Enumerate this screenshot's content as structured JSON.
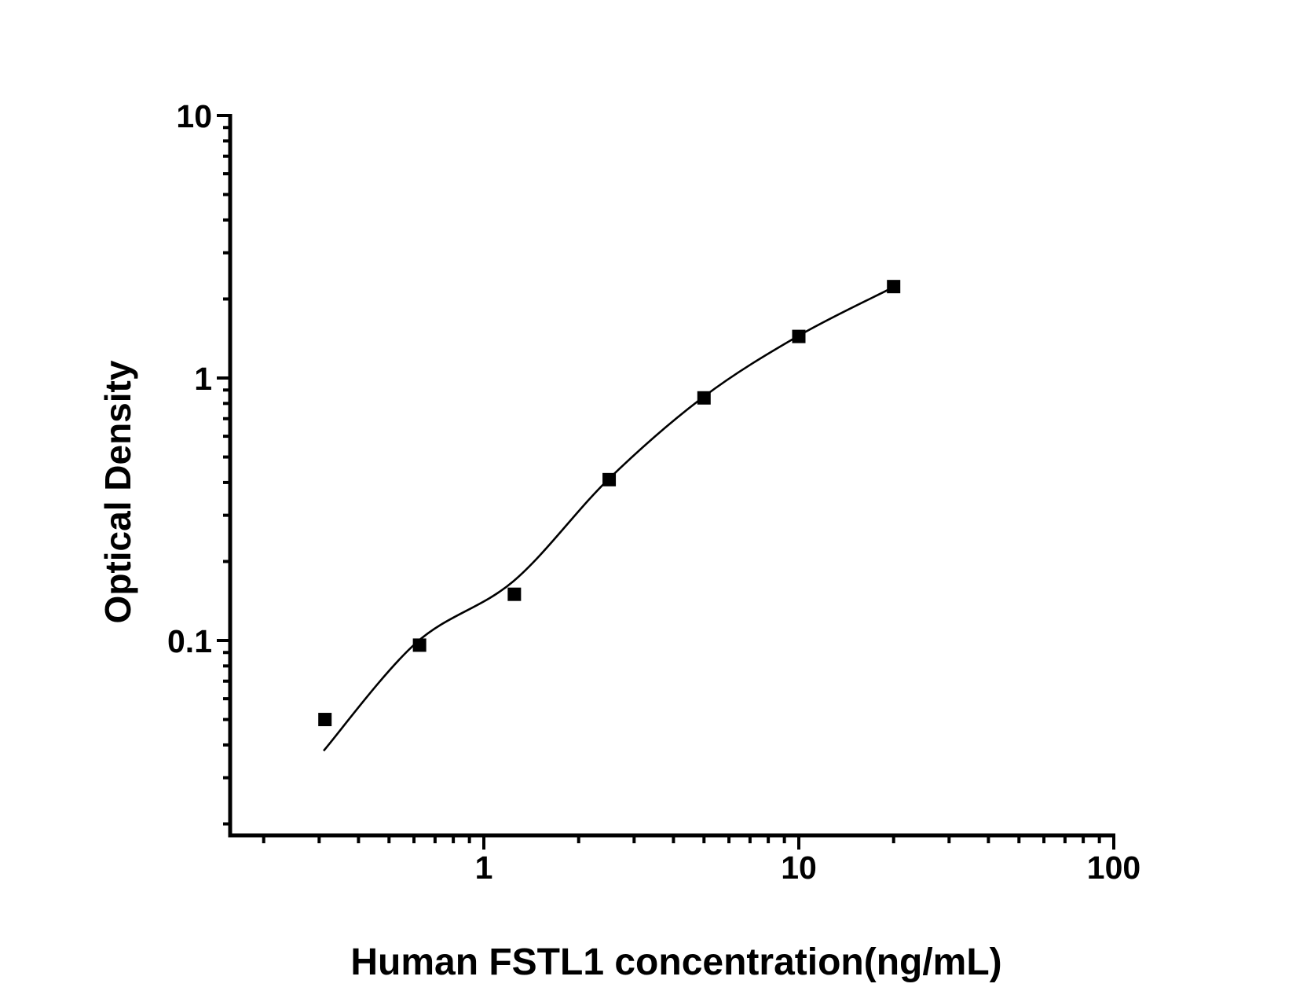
{
  "figure": {
    "background": "#ffffff",
    "ink_color": "#000000"
  },
  "chart_data": {
    "type": "scatter",
    "title": "",
    "xlabel": "Human FSTL1 concentration(ng/mL)",
    "ylabel": "Optical Density",
    "x_scale": "log",
    "y_scale": "log",
    "xlim": [
      0.155,
      100
    ],
    "ylim": [
      0.018,
      10
    ],
    "grid": false,
    "legend": false,
    "x_axis": {
      "major_tick_labels": [
        "1",
        "10",
        "100"
      ],
      "major_tick_values": [
        1,
        10,
        100
      ],
      "minor_tick_values": [
        0.2,
        0.3,
        0.4,
        0.5,
        0.6,
        0.7,
        0.8,
        0.9,
        2,
        3,
        4,
        5,
        6,
        7,
        8,
        9,
        20,
        30,
        40,
        50,
        60,
        70,
        80,
        90
      ]
    },
    "y_axis": {
      "major_tick_labels": [
        "0.1",
        "1",
        "10"
      ],
      "major_tick_values": [
        0.1,
        1,
        10
      ],
      "minor_tick_values": [
        0.02,
        0.03,
        0.04,
        0.05,
        0.06,
        0.07,
        0.08,
        0.09,
        0.2,
        0.3,
        0.4,
        0.5,
        0.6,
        0.7,
        0.8,
        0.9,
        2,
        3,
        4,
        5,
        6,
        7,
        8,
        9
      ]
    },
    "series": [
      {
        "name": "standard-points",
        "type": "scatter",
        "marker": "filled-square",
        "color": "#000000",
        "points": [
          {
            "x": 0.313,
            "y": 0.05
          },
          {
            "x": 0.625,
            "y": 0.096
          },
          {
            "x": 1.25,
            "y": 0.15
          },
          {
            "x": 2.5,
            "y": 0.41
          },
          {
            "x": 5,
            "y": 0.84
          },
          {
            "x": 10,
            "y": 1.44
          },
          {
            "x": 20,
            "y": 2.23
          }
        ]
      },
      {
        "name": "fit-curve",
        "type": "line",
        "color": "#000000",
        "points": [
          {
            "x": 0.31,
            "y": 0.038
          },
          {
            "x": 0.61,
            "y": 0.098
          },
          {
            "x": 1.24,
            "y": 0.168
          },
          {
            "x": 2.48,
            "y": 0.41
          },
          {
            "x": 5.0,
            "y": 0.85
          },
          {
            "x": 10,
            "y": 1.45
          },
          {
            "x": 19.4,
            "y": 2.18
          }
        ]
      }
    ]
  }
}
